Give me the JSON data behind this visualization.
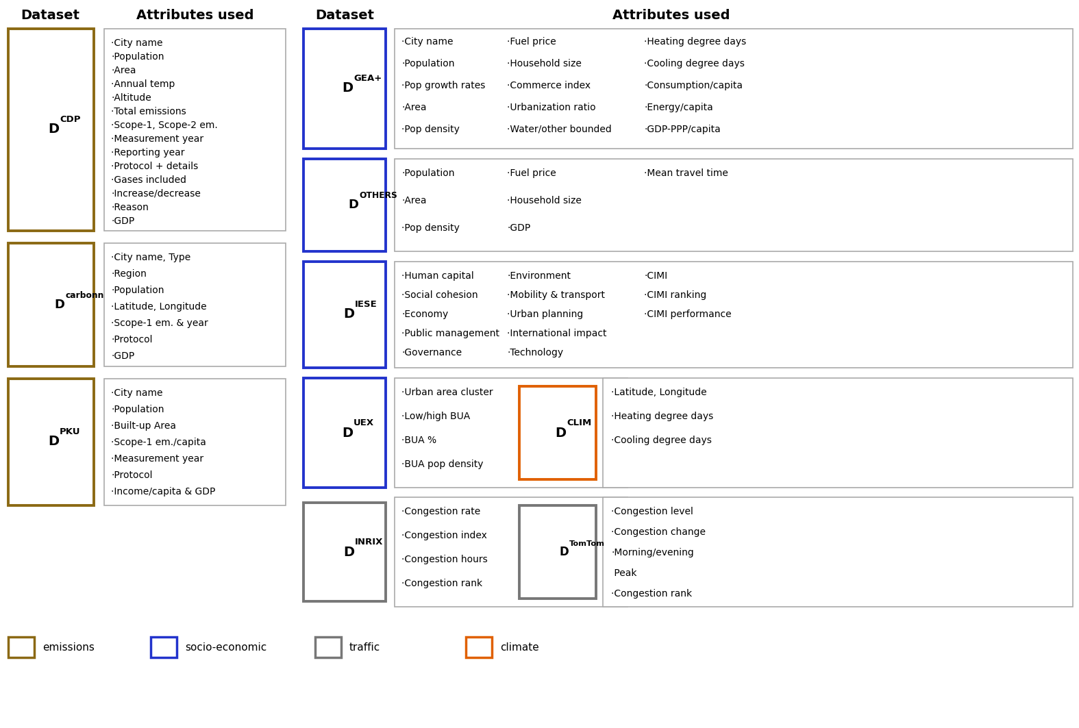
{
  "bg_color": "#ffffff",
  "colors": {
    "emissions": "#8B6914",
    "socioeconomic": "#2233CC",
    "traffic": "#777777",
    "climate": "#E06000"
  },
  "headers": {
    "left_dataset": "Dataset",
    "left_attrs": "Attributes used",
    "right_dataset": "Dataset",
    "right_attrs": "Attributes used"
  },
  "left_datasets": [
    {
      "label": "D",
      "superscript": "CDP",
      "color": "#8B6914",
      "attributes": [
        "·City name",
        "·Population",
        "·Area",
        "·Annual temp",
        "·Altitude",
        "·Total emissions",
        "·Scope-1, Scope-2 em.",
        "·Measurement year",
        "·Reporting year",
        "·Protocol + details",
        "·Gases included",
        "·Increase/decrease",
        "·Reason",
        "·GDP"
      ]
    },
    {
      "label": "D",
      "superscript": "carbonn",
      "color": "#8B6914",
      "attributes": [
        "·City name, Type",
        "·Region",
        "·Population",
        "·Latitude, Longitude",
        "·Scope-1 em. & year",
        "·Protocol",
        "·GDP"
      ]
    },
    {
      "label": "D",
      "superscript": "PKU",
      "color": "#8B6914",
      "attributes": [
        "·City name",
        "·Population",
        "·Built-up Area",
        "·Scope-1 em./capita",
        "·Measurement year",
        "·Protocol",
        "·Income/capita & GDP"
      ]
    }
  ],
  "right_datasets": [
    {
      "label": "D",
      "superscript": "GEA+",
      "color": "#2233CC",
      "cols": [
        [
          "·City name",
          "·Population",
          "·Pop growth rates",
          "·Area",
          "·Pop density"
        ],
        [
          "·Fuel price",
          "·Household size",
          "·Commerce index",
          "·Urbanization ratio",
          "·Water/other bounded"
        ],
        [
          "·Heating degree days",
          "·Cooling degree days",
          "·Consumption/capita",
          "·Energy/capita",
          "·GDP-PPP/capita"
        ]
      ]
    },
    {
      "label": "D",
      "superscript": "OTHERS",
      "color": "#2233CC",
      "cols": [
        [
          "·Population",
          "·Area",
          "·Pop density"
        ],
        [
          "·Fuel price",
          "·Household size",
          "·GDP"
        ],
        [
          "·Mean travel time"
        ]
      ]
    },
    {
      "label": "D",
      "superscript": "IESE",
      "color": "#2233CC",
      "cols": [
        [
          "·Human capital",
          "·Social cohesion",
          "·Economy",
          "·Public management",
          "·Governance"
        ],
        [
          "·Environment",
          "·Mobility & transport",
          "·Urban planning",
          "·International impact",
          "·Technology"
        ],
        [
          "·CIMI",
          "·CIMI ranking",
          "·CIMI performance"
        ]
      ]
    },
    {
      "label": "D",
      "superscript": "UEX",
      "color": "#2233CC",
      "sub_label": "D",
      "sub_superscript": "CLIM",
      "sub_color": "#E06000",
      "cols": [
        [
          "·Urban area cluster",
          "·Low/high BUA",
          "·BUA %",
          "·BUA pop density"
        ],
        [],
        [
          "·Latitude, Longitude",
          "·Heating degree days",
          "·Cooling degree days"
        ]
      ]
    },
    {
      "label": "D",
      "superscript": "INRIX",
      "color": "#777777",
      "sub_label": "D",
      "sub_superscript": "TomTom",
      "sub_color": "#777777",
      "cols": [
        [
          "·Congestion rate",
          "·Congestion index",
          "·Congestion hours",
          "·Congestion rank"
        ],
        [],
        [
          "·Congestion level",
          "·Congestion change",
          "·Morning/evening",
          " Peak",
          "·Congestion rank"
        ]
      ]
    }
  ],
  "legend": [
    {
      "label": "emissions",
      "color": "#8B6914"
    },
    {
      "label": "socio-economic",
      "color": "#2233CC"
    },
    {
      "label": "traffic",
      "color": "#777777"
    },
    {
      "label": "climate",
      "color": "#E06000"
    }
  ]
}
